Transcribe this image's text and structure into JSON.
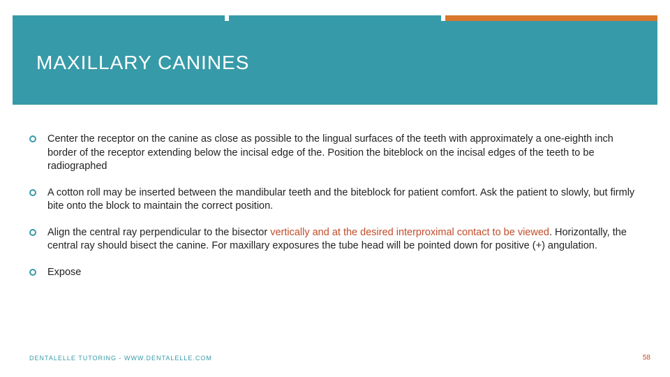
{
  "colors": {
    "teal": "#379aa8",
    "orange": "#d9782d",
    "text": "#222222",
    "highlight": "#c24c2a",
    "footer": "#379aa8",
    "pagenum": "#c24c2a",
    "white": "#ffffff"
  },
  "title": "MAXILLARY CANINES",
  "bullets": [
    {
      "parts": [
        {
          "text": "Center the receptor on the canine as close as possible to the lingual surfaces of the teeth with approximately a one-eighth inch border of the receptor extending below the incisal edge of the.  Position the biteblock on the incisal edges of the teeth to be radiographed",
          "highlight": false
        }
      ]
    },
    {
      "parts": [
        {
          "text": "A cotton roll may be inserted between the mandibular teeth and the biteblock for patient comfort.  Ask the patient to slowly, but firmly bite onto the block to maintain the correct position.",
          "highlight": false
        }
      ]
    },
    {
      "parts": [
        {
          "text": "Align the central ray perpendicular to the bisector ",
          "highlight": false
        },
        {
          "text": "vertically and at the desired interproximal contact to be viewed",
          "highlight": true
        },
        {
          "text": ".  Horizontally, the central ray should bisect the canine.  For maxillary exposures the tube head will be pointed down for positive (+) angulation.",
          "highlight": false
        }
      ]
    },
    {
      "parts": [
        {
          "text": "Expose",
          "highlight": false
        }
      ]
    }
  ],
  "footer": "DENTALELLE TUTORING - WWW.DENTALELLE.COM",
  "page_number": "58"
}
